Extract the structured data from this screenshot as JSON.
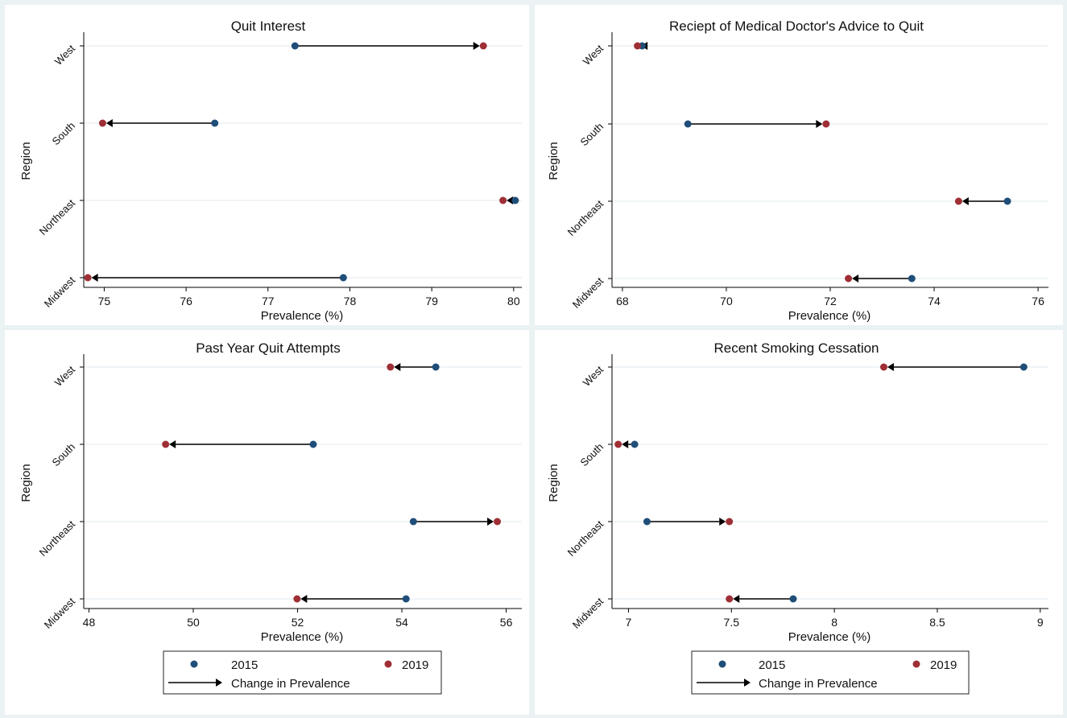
{
  "legend": {
    "label_2015": "2015",
    "label_2019": "2019",
    "label_change": "Change in Prevalence"
  },
  "colors": {
    "year_2015": "#1f4e79",
    "year_2019": "#9e2f35",
    "arrow": "#000000",
    "panel_background": "#ffffff",
    "page_background": "#eaf2f3",
    "gridline": "#e6eef0"
  },
  "chart_data": [
    {
      "type": "dumbbell",
      "title": "Quit Interest",
      "xlabel": "Prevalence (%)",
      "ylabel": "Region",
      "categories": [
        "West",
        "South",
        "Northeast",
        "Midwest"
      ],
      "xlim": [
        74.75,
        80.1
      ],
      "xticks": [
        75,
        76,
        77,
        78,
        79,
        80
      ],
      "xtick_labels": [
        "75",
        "76",
        "77",
        "78",
        "79",
        "80"
      ],
      "series": [
        {
          "name": "2015",
          "values": [
            77.33,
            76.35,
            80.02,
            77.92
          ]
        },
        {
          "name": "2019",
          "values": [
            79.63,
            74.98,
            79.87,
            74.8
          ]
        }
      ]
    },
    {
      "type": "dumbbell",
      "title": "Reciept of Medical Doctor's Advice to Quit",
      "xlabel": "Prevalence (%)",
      "ylabel": "Region",
      "categories": [
        "West",
        "South",
        "Northeast",
        "Midwest"
      ],
      "xlim": [
        67.8,
        76.2
      ],
      "xticks": [
        68,
        70,
        72,
        74,
        76
      ],
      "xtick_labels": [
        "68",
        "70",
        "72",
        "74",
        "76"
      ],
      "series": [
        {
          "name": "2015",
          "values": [
            68.38,
            69.26,
            75.41,
            73.57
          ]
        },
        {
          "name": "2019",
          "values": [
            68.29,
            71.92,
            74.47,
            72.35
          ]
        }
      ]
    },
    {
      "type": "dumbbell",
      "title": "Past Year Quit Attempts",
      "xlabel": "Prevalence (%)",
      "ylabel": "Region",
      "categories": [
        "West",
        "South",
        "Northeast",
        "Midwest"
      ],
      "xlim": [
        47.9,
        56.3
      ],
      "xticks": [
        48,
        50,
        52,
        54,
        56
      ],
      "xtick_labels": [
        "48",
        "50",
        "52",
        "54",
        "56"
      ],
      "series": [
        {
          "name": "2015",
          "values": [
            54.65,
            52.3,
            54.22,
            54.08
          ]
        },
        {
          "name": "2019",
          "values": [
            53.78,
            49.47,
            55.83,
            51.99
          ]
        }
      ]
    },
    {
      "type": "dumbbell",
      "title": "Recent Smoking Cessation",
      "xlabel": "Prevalence (%)",
      "ylabel": "Region",
      "categories": [
        "West",
        "South",
        "Northeast",
        "Midwest"
      ],
      "xlim": [
        6.92,
        9.04
      ],
      "xticks": [
        7,
        7.5,
        8,
        8.5,
        9
      ],
      "xtick_labels": [
        "7",
        "7.5",
        "8",
        "8.5",
        "9"
      ],
      "series": [
        {
          "name": "2015",
          "values": [
            8.92,
            7.03,
            7.09,
            7.8
          ]
        },
        {
          "name": "2019",
          "values": [
            8.24,
            6.95,
            7.49,
            7.49
          ]
        }
      ]
    }
  ]
}
